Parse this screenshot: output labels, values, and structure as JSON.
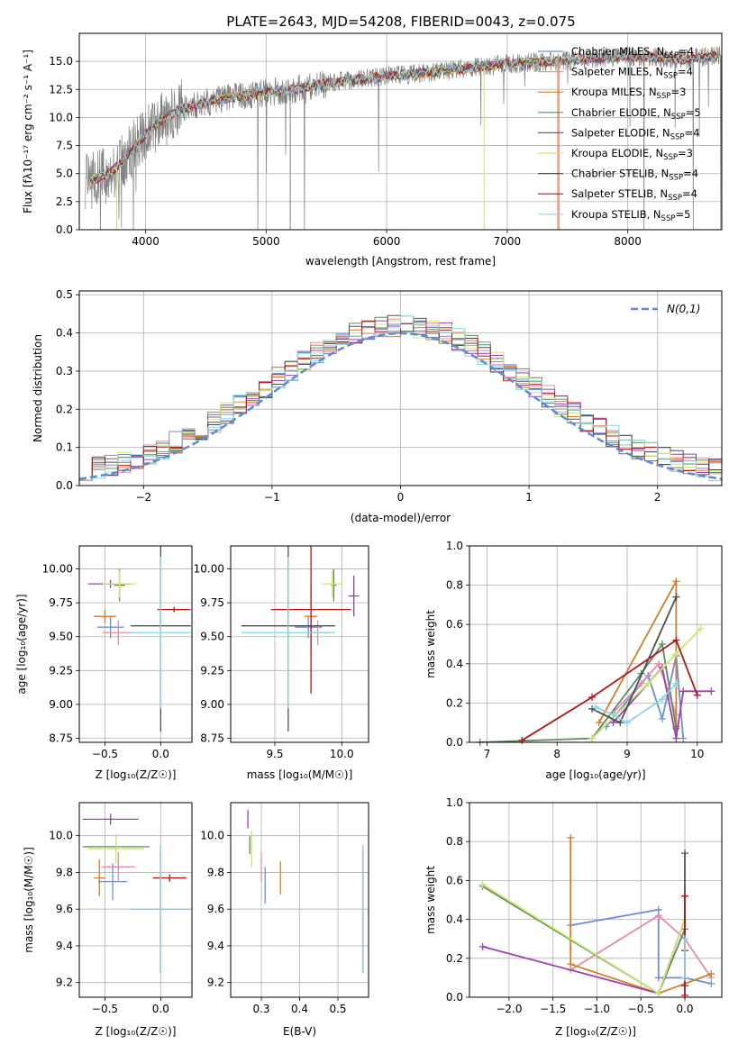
{
  "title": "PLATE=2643, MJD=54208, FIBERID=0043, z=0.075",
  "colors": {
    "Chabrier MILES": "#6a8fd8",
    "Salpeter MILES": "#e88aaa",
    "Kroupa MILES": "#d97a2a",
    "Chabrier ELODIE": "#5f8a5f",
    "Salpeter ELODIE": "#9b3fb0",
    "Kroupa ELODIE": "#c9e86a",
    "Chabrier STELIB": "#505050",
    "Salpeter STELIB": "#b01818",
    "Kroupa STELIB": "#86d8e0",
    "data": "#808080",
    "gauss": "#5b8bd6"
  },
  "chart_data": [
    {
      "id": "spectrum",
      "type": "line",
      "xlabel": "wavelength [Angstrom, rest frame]",
      "ylabel": "Flux [f_λ10^-17 erg cm^-2 s^-1 A^-1]",
      "xlim": [
        3450,
        8780
      ],
      "ylim": [
        0,
        17.5
      ],
      "xticks": [
        "4000",
        "5000",
        "6000",
        "7000",
        "8000"
      ],
      "yticks": [
        "0.0",
        "2.5",
        "5.0",
        "7.5",
        "10.0",
        "12.5",
        "15.0"
      ],
      "legend_position": "top-right",
      "legend": [
        {
          "name": "Chabrier MILES",
          "nssp": "4"
        },
        {
          "name": "Salpeter MILES",
          "nssp": "4"
        },
        {
          "name": "Kroupa MILES",
          "nssp": "3"
        },
        {
          "name": "Chabrier ELODIE",
          "nssp": "5"
        },
        {
          "name": "Salpeter ELODIE",
          "nssp": "4"
        },
        {
          "name": "Kroupa ELODIE",
          "nssp": "3"
        },
        {
          "name": "Chabrier STELIB",
          "nssp": "4"
        },
        {
          "name": "Salpeter STELIB",
          "nssp": "4"
        },
        {
          "name": "Kroupa STELIB",
          "nssp": "5"
        }
      ],
      "continuum": {
        "x": [
          3500,
          3700,
          3800,
          4000,
          4100,
          4300,
          4600,
          5000,
          5300,
          5600,
          6000,
          6500,
          7000,
          7400,
          8000,
          8500,
          8780
        ],
        "y": [
          4.2,
          5.0,
          6.0,
          8.5,
          9.5,
          10.8,
          11.6,
          12.2,
          12.6,
          13.2,
          13.7,
          14.2,
          14.8,
          15.0,
          15.5,
          15.2,
          15.6
        ]
      }
    },
    {
      "id": "residuals",
      "type": "step",
      "xlabel": "(data-model)/error",
      "ylabel": "Normed distribution",
      "xlim": [
        -2.5,
        2.5
      ],
      "ylim": [
        0,
        0.51
      ],
      "xticks": [
        "−2",
        "−1",
        "0",
        "1",
        "2"
      ],
      "yticks": [
        "0.0",
        "0.1",
        "0.2",
        "0.3",
        "0.4",
        "0.5"
      ],
      "gauss_label": "N(0,1)",
      "legend_position": "top-right"
    },
    {
      "id": "age-vs-Z",
      "type": "errorbar",
      "xlabel": "Z [log10(Z/Z☉)]",
      "ylabel": "age [log10(age/yr)]",
      "xlim": [
        -0.73,
        0.28
      ],
      "ylim": [
        8.72,
        10.17
      ],
      "xticks": [
        -0.5,
        0.0
      ],
      "yticks": [
        8.75,
        9.0,
        9.25,
        9.5,
        9.75,
        10.0
      ],
      "points": [
        {
          "series": "Chabrier MILES",
          "x": -0.45,
          "xerr": 0.12,
          "y": 9.57,
          "yerr": 0.08
        },
        {
          "series": "Salpeter MILES",
          "x": -0.38,
          "xerr": 0.14,
          "y": 9.53,
          "yerr": 0.09
        },
        {
          "series": "Kroupa MILES",
          "x": -0.5,
          "xerr": 0.1,
          "y": 9.65,
          "yerr": 0.05
        },
        {
          "series": "Chabrier ELODIE",
          "x": -0.37,
          "xerr": 0.05,
          "y": 9.88,
          "yerr": 0.12
        },
        {
          "series": "Salpeter ELODIE",
          "x": -0.45,
          "xerr": 0.2,
          "y": 9.89,
          "yerr": 0.03
        },
        {
          "series": "Kroupa ELODIE",
          "x": -0.37,
          "xerr": 0.15,
          "y": 9.89,
          "yerr": 0.1
        },
        {
          "series": "Chabrier STELIB",
          "x": 0.0,
          "xerr": 0.27,
          "y": 9.58,
          "yerr": 0.78
        },
        {
          "series": "Salpeter STELIB",
          "x": 0.12,
          "xerr": 0.15,
          "y": 9.7,
          "yerr": 0.02
        },
        {
          "series": "Kroupa STELIB",
          "x": 0.0,
          "xerr": 0.27,
          "y": 9.53,
          "yerr": 0.56
        }
      ]
    },
    {
      "id": "age-vs-mass",
      "type": "errorbar",
      "xlabel": "mass [log10(M/M☉)]",
      "ylabel": "",
      "xlim": [
        9.17,
        10.2
      ],
      "ylim": [
        8.72,
        10.17
      ],
      "xticks": [
        9.5,
        10.0
      ],
      "yticks": [
        8.75,
        9.0,
        9.25,
        9.5,
        9.75,
        10.0
      ],
      "points": [
        {
          "series": "Chabrier MILES",
          "x": 9.75,
          "xerr": 0.1,
          "y": 9.57,
          "yerr": 0.08
        },
        {
          "series": "Salpeter MILES",
          "x": 9.82,
          "xerr": 0.08,
          "y": 9.53,
          "yerr": 0.09
        },
        {
          "series": "Kroupa MILES",
          "x": 9.77,
          "xerr": 0.05,
          "y": 9.65,
          "yerr": 0.25
        },
        {
          "series": "Chabrier ELODIE",
          "x": 9.94,
          "xerr": 0.02,
          "y": 9.88,
          "yerr": 0.12
        },
        {
          "series": "Salpeter ELODIE",
          "x": 10.09,
          "xerr": 0.04,
          "y": 9.8,
          "yerr": 0.15
        },
        {
          "series": "Kroupa ELODIE",
          "x": 9.93,
          "xerr": 0.08,
          "y": 9.89,
          "yerr": 0.1
        },
        {
          "series": "Chabrier STELIB",
          "x": 9.6,
          "xerr": 0.35,
          "y": 9.58,
          "yerr": 0.78
        },
        {
          "series": "Salpeter STELIB",
          "x": 9.77,
          "xerr": 0.3,
          "y": 9.7,
          "yerr": 0.62
        },
        {
          "series": "Kroupa STELIB",
          "x": 9.6,
          "xerr": 0.35,
          "y": 9.53,
          "yerr": 0.56
        }
      ]
    },
    {
      "id": "weight-vs-age",
      "type": "line",
      "xlabel": "age [log10(age/yr)]",
      "ylabel": "mass weight",
      "xlim": [
        6.75,
        10.35
      ],
      "ylim": [
        0,
        1.0
      ],
      "xticks": [
        7,
        8,
        9,
        10
      ],
      "yticks": [
        0.0,
        0.2,
        0.4,
        0.6,
        0.8,
        1.0
      ],
      "series": [
        {
          "name": "Chabrier MILES",
          "x": [
            8.7,
            9.3,
            9.5,
            9.7,
            9.8
          ],
          "y": [
            0.08,
            0.34,
            0.12,
            0.44,
            0.02
          ]
        },
        {
          "name": "Salpeter MILES",
          "x": [
            8.8,
            9.2,
            9.45,
            9.7
          ],
          "y": [
            0.15,
            0.3,
            0.4,
            0.14
          ]
        },
        {
          "name": "Kroupa MILES",
          "x": [
            8.6,
            9.7,
            9.7
          ],
          "y": [
            0.1,
            0.82,
            0.08
          ]
        },
        {
          "name": "Chabrier ELODIE",
          "x": [
            6.9,
            8.5,
            9.2,
            9.5,
            9.7
          ],
          "y": [
            0.0,
            0.02,
            0.35,
            0.5,
            0.07
          ]
        },
        {
          "name": "Salpeter ELODIE",
          "x": [
            8.8,
            9.5,
            9.7,
            9.8,
            10.2
          ],
          "y": [
            0.1,
            0.38,
            0.02,
            0.26,
            0.26
          ]
        },
        {
          "name": "Kroupa ELODIE",
          "x": [
            8.5,
            9.3,
            9.7,
            10.05
          ],
          "y": [
            0.02,
            0.3,
            0.45,
            0.58
          ]
        },
        {
          "name": "Chabrier STELIB",
          "x": [
            8.5,
            8.9,
            9.7
          ],
          "y": [
            0.17,
            0.1,
            0.74
          ]
        },
        {
          "name": "Salpeter STELIB",
          "x": [
            7.5,
            8.5,
            9.7,
            10.0
          ],
          "y": [
            0.01,
            0.23,
            0.52,
            0.24
          ]
        },
        {
          "name": "Kroupa STELIB",
          "x": [
            8.55,
            8.8,
            9.0,
            9.5,
            9.7
          ],
          "y": [
            0.18,
            0.14,
            0.1,
            0.22,
            0.3
          ]
        }
      ]
    },
    {
      "id": "mass-vs-Z",
      "type": "errorbar",
      "xlabel": "Z [log10(Z/Z☉)]",
      "ylabel": "mass [log10(M/M☉)]",
      "xlim": [
        -0.73,
        0.28
      ],
      "ylim": [
        9.12,
        10.18
      ],
      "xticks": [
        -0.5,
        0.0
      ],
      "yticks": [
        9.2,
        9.4,
        9.6,
        9.8,
        10.0
      ],
      "points": [
        {
          "series": "Chabrier MILES",
          "x": -0.43,
          "xerr": 0.13,
          "y": 9.75,
          "yerr": 0.1
        },
        {
          "series": "Salpeter MILES",
          "x": -0.38,
          "xerr": 0.15,
          "y": 9.83,
          "yerr": 0.08
        },
        {
          "series": "Kroupa MILES",
          "x": -0.55,
          "xerr": 0.05,
          "y": 9.77,
          "yerr": 0.1
        },
        {
          "series": "Chabrier ELODIE",
          "x": -0.4,
          "xerr": 0.3,
          "y": 9.94,
          "yerr": 0.02
        },
        {
          "series": "Salpeter ELODIE",
          "x": -0.45,
          "xerr": 0.25,
          "y": 10.09,
          "yerr": 0.03
        },
        {
          "series": "Kroupa ELODIE",
          "x": -0.4,
          "xerr": 0.25,
          "y": 9.93,
          "yerr": 0.08
        },
        {
          "series": "Chabrier STELIB",
          "x": 0.0,
          "xerr": 0.27,
          "y": 9.6,
          "yerr": 0.35
        },
        {
          "series": "Salpeter STELIB",
          "x": 0.08,
          "xerr": 0.15,
          "y": 9.77,
          "yerr": 0.02
        },
        {
          "series": "Kroupa STELIB",
          "x": 0.0,
          "xerr": 0.27,
          "y": 9.6,
          "yerr": 0.35
        }
      ]
    },
    {
      "id": "mass-vs-EBV",
      "type": "errorbar",
      "xlabel": "E(B-V)",
      "ylabel": "",
      "xlim": [
        0.22,
        0.58
      ],
      "ylim": [
        9.12,
        10.18
      ],
      "xticks": [
        0.3,
        0.4,
        0.5
      ],
      "yticks": [
        9.2,
        9.4,
        9.6,
        9.8,
        10.0
      ],
      "points": [
        {
          "series": "Chabrier MILES",
          "x": 0.31,
          "xerr": 0.0,
          "y": 9.73,
          "yerr": 0.1
        },
        {
          "series": "Salpeter MILES",
          "x": 0.3,
          "xerr": 0.0,
          "y": 9.83,
          "yerr": 0.08
        },
        {
          "series": "Kroupa MILES",
          "x": 0.35,
          "xerr": 0.0,
          "y": 9.77,
          "yerr": 0.09
        },
        {
          "series": "Chabrier ELODIE",
          "x": 0.27,
          "xerr": 0.0,
          "y": 9.95,
          "yerr": 0.05
        },
        {
          "series": "Salpeter ELODIE",
          "x": 0.265,
          "xerr": 0.0,
          "y": 10.09,
          "yerr": 0.05
        },
        {
          "series": "Kroupa ELODIE",
          "x": 0.275,
          "xerr": 0.0,
          "y": 9.93,
          "yerr": 0.1
        },
        {
          "series": "Chabrier STELIB",
          "x": 0.565,
          "xerr": 0.0,
          "y": 9.6,
          "yerr": 0.35
        },
        {
          "series": "Salpeter STELIB",
          "x": 0.565,
          "xerr": 0.0,
          "y": 9.77,
          "yerr": 0.04
        },
        {
          "series": "Kroupa STELIB",
          "x": 0.565,
          "xerr": 0.0,
          "y": 9.6,
          "yerr": 0.35
        }
      ]
    },
    {
      "id": "weight-vs-Z",
      "type": "line",
      "xlabel": "Z [log10(Z/Z☉)]",
      "ylabel": "mass weight",
      "xlim": [
        -2.45,
        0.42
      ],
      "ylim": [
        0,
        1.0
      ],
      "xticks": [
        -2.0,
        -1.5,
        -1.0,
        -0.5,
        0.0
      ],
      "yticks": [
        0.0,
        0.2,
        0.4,
        0.6,
        0.8,
        1.0
      ],
      "series": [
        {
          "name": "Chabrier MILES",
          "x": [
            -1.3,
            -0.3,
            -0.3,
            0.0,
            0.3
          ],
          "y": [
            0.37,
            0.45,
            0.1,
            0.1,
            0.07
          ]
        },
        {
          "name": "Salpeter MILES",
          "x": [
            -1.3,
            -0.3,
            0.0,
            0.3
          ],
          "y": [
            0.14,
            0.42,
            0.3,
            0.1
          ]
        },
        {
          "name": "Kroupa MILES",
          "x": [
            -1.3,
            -1.3,
            -0.3,
            0.3
          ],
          "y": [
            0.82,
            0.17,
            0.02,
            0.12
          ]
        },
        {
          "name": "Chabrier ELODIE",
          "x": [
            -2.3,
            -0.3,
            0.0
          ],
          "y": [
            0.57,
            0.02,
            0.35
          ]
        },
        {
          "name": "Salpeter ELODIE",
          "x": [
            -2.3,
            -0.3,
            0.0
          ],
          "y": [
            0.26,
            0.02,
            0.4
          ]
        },
        {
          "name": "Kroupa ELODIE",
          "x": [
            -2.3,
            -0.3,
            0.0
          ],
          "y": [
            0.58,
            0.02,
            0.4
          ]
        },
        {
          "name": "Chabrier STELIB",
          "x": [
            0.0,
            0.0
          ],
          "y": [
            0.74,
            0.06
          ]
        },
        {
          "name": "Salpeter STELIB",
          "x": [
            0.0,
            0.0,
            0.0
          ],
          "y": [
            0.52,
            0.24,
            0.01
          ]
        },
        {
          "name": "Kroupa STELIB",
          "x": [
            0.0,
            0.0
          ],
          "y": [
            0.3,
            0.1
          ]
        }
      ]
    }
  ]
}
